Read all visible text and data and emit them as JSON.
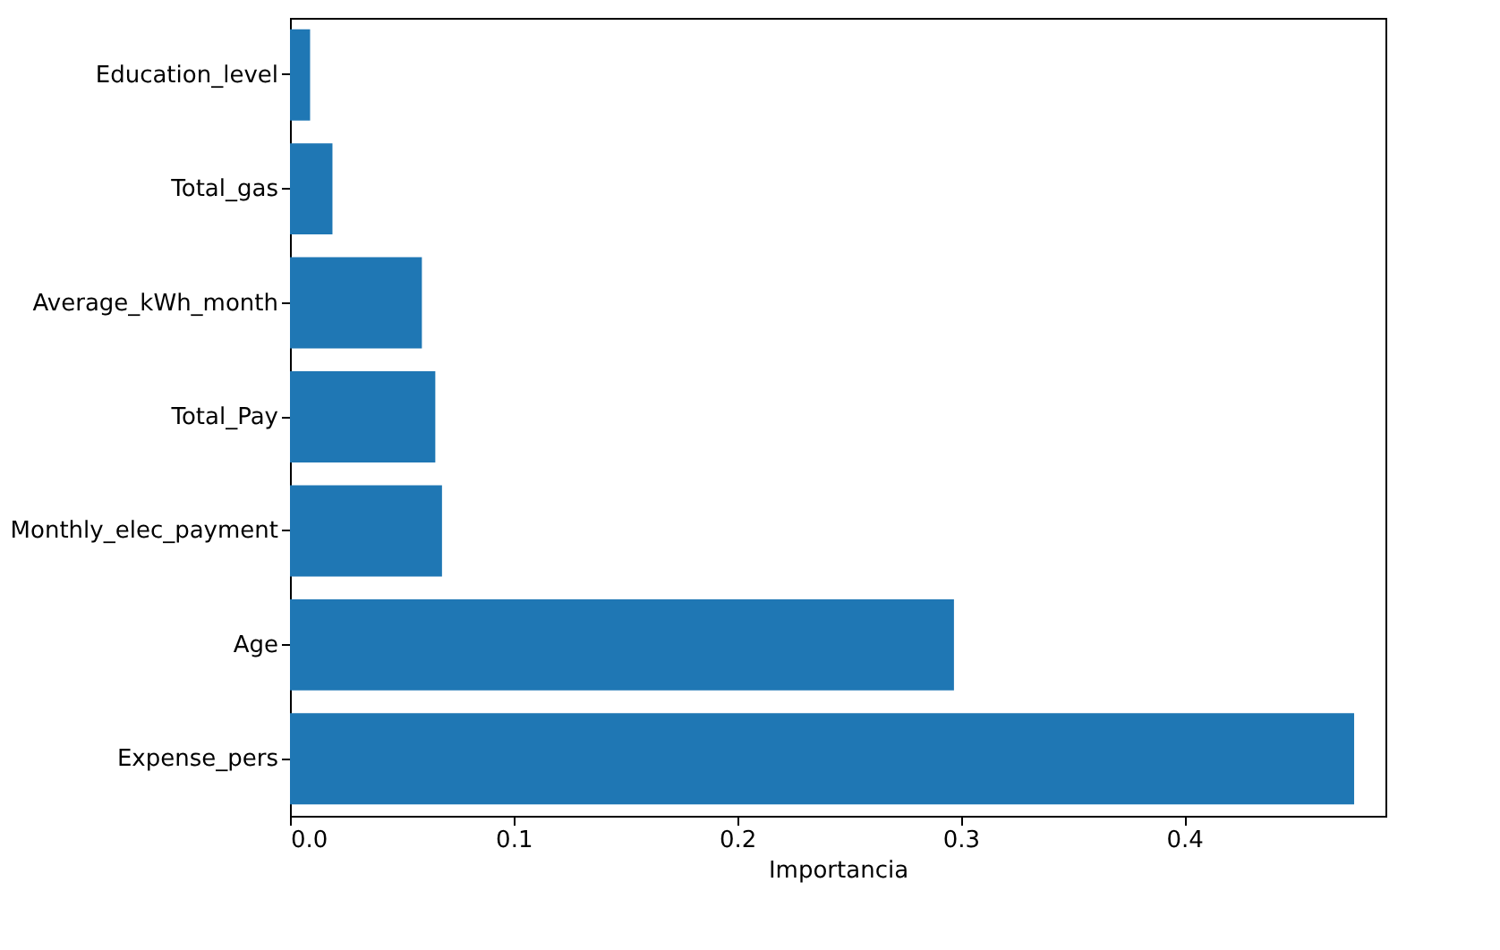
{
  "chart_data": {
    "type": "bar",
    "orientation": "horizontal",
    "xlabel": "Importancia",
    "categories": [
      "Education_level",
      "Total_gas",
      "Average_kWh_month",
      "Total_Pay",
      "Monthly_elec_payment",
      "Age",
      "Expense_pers"
    ],
    "values": [
      0.009,
      0.019,
      0.059,
      0.065,
      0.068,
      0.297,
      0.476
    ],
    "color": "#1f77b4",
    "xlim": [
      0,
      0.49
    ],
    "xticks": [
      {
        "value": 0,
        "label": "0.0"
      },
      0.1,
      0.2,
      0.3,
      0.4
    ],
    "grid": false
  }
}
